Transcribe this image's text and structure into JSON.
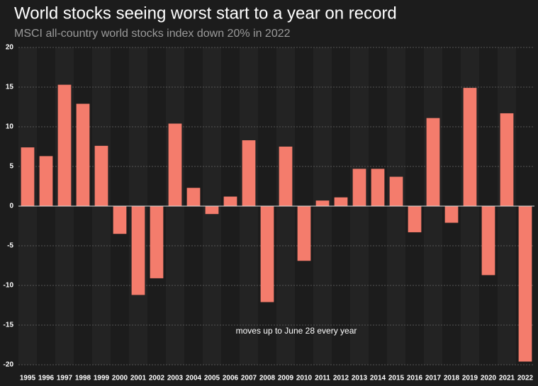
{
  "chart_data": {
    "type": "bar",
    "title": "World stocks seeing worst start to a year on record",
    "subtitle": "MSCI all-country world stocks index down 20% in 2022",
    "annotation": "moves up to June 28 every year",
    "categories": [
      "1995",
      "1996",
      "1997",
      "1998",
      "1999",
      "2000",
      "2001",
      "2002",
      "2003",
      "2004",
      "2005",
      "2006",
      "2007",
      "2008",
      "2009",
      "2010",
      "2011",
      "2012",
      "2013",
      "2014",
      "2015",
      "2016",
      "2017",
      "2018",
      "2019",
      "2020",
      "2021",
      "2022"
    ],
    "values": [
      7.4,
      6.3,
      15.3,
      12.9,
      7.6,
      -3.5,
      -11.2,
      -9.1,
      10.4,
      2.3,
      -1.0,
      1.2,
      8.3,
      -12.1,
      7.5,
      -6.9,
      0.7,
      1.1,
      4.7,
      4.7,
      3.7,
      -3.3,
      11.1,
      -2.1,
      14.9,
      -8.7,
      11.7,
      -19.6
    ],
    "color": "#f47c6c",
    "ylim": [
      -20,
      20
    ],
    "yticks": [
      -20,
      -15,
      -10,
      -5,
      0,
      5,
      10,
      15,
      20
    ],
    "grid": true
  }
}
